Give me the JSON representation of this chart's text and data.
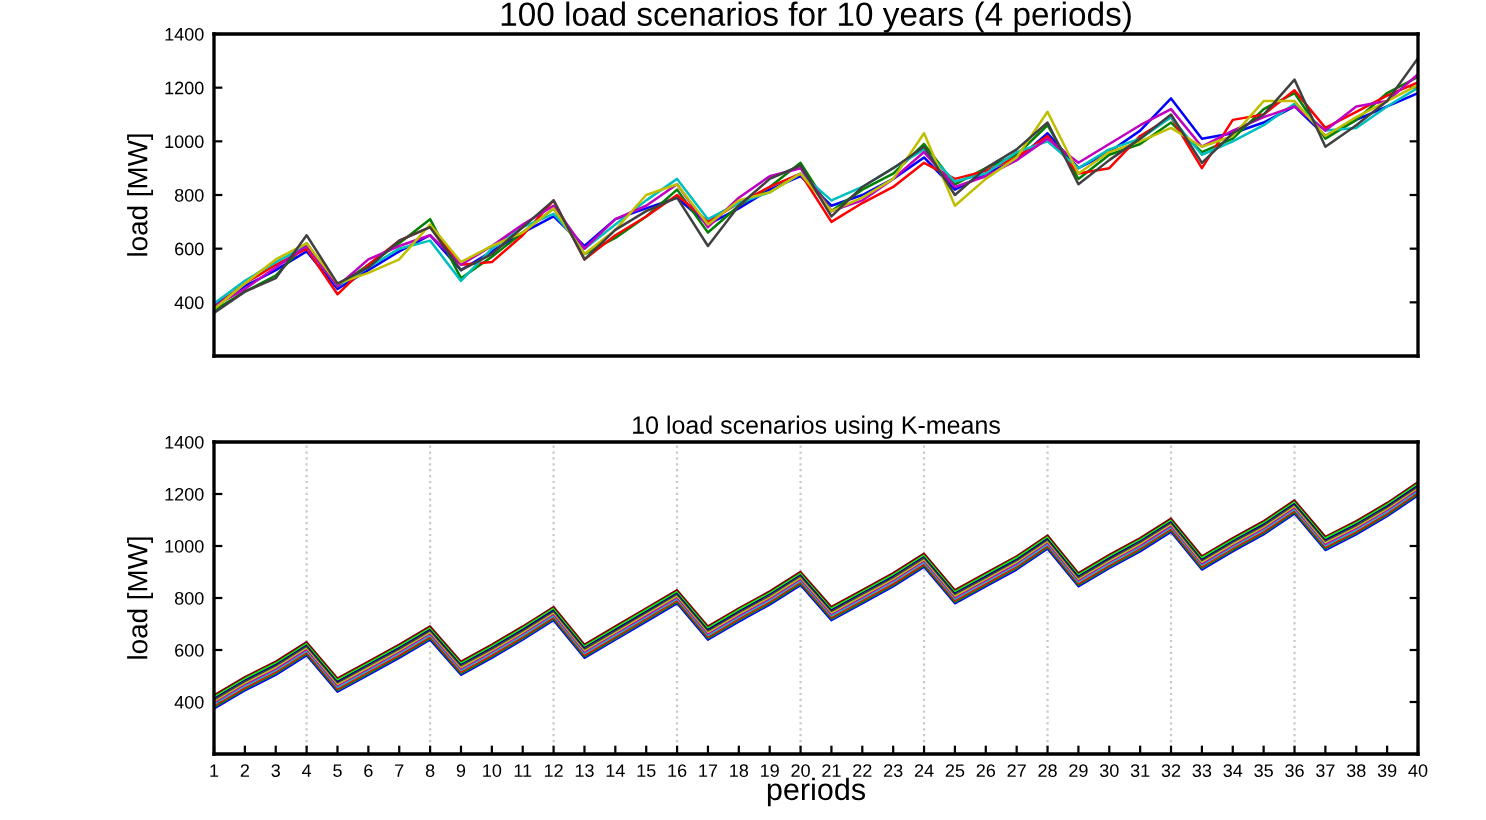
{
  "chart_data": [
    {
      "type": "line",
      "title": "100 load scenarios for 10 years (4 periods)",
      "ylabel": "load [MW]",
      "x": [
        1,
        2,
        3,
        4,
        5,
        6,
        7,
        8,
        9,
        10,
        11,
        12,
        13,
        14,
        15,
        16,
        17,
        18,
        19,
        20,
        21,
        22,
        23,
        24,
        25,
        26,
        27,
        28,
        29,
        30,
        31,
        32,
        33,
        34,
        35,
        36,
        37,
        38,
        39,
        40
      ],
      "xlim": [
        1,
        40
      ],
      "ylim": [
        200,
        1400
      ],
      "yticks": [
        400,
        600,
        800,
        1000,
        1200,
        1400
      ],
      "tick_labels": "y",
      "legend": false,
      "marker": "none",
      "line_style": "solid",
      "grid": false,
      "series": [
        {
          "color": "#0000ff",
          "values": [
            390,
            460,
            520,
            590,
            450,
            520,
            590,
            650,
            520,
            590,
            660,
            720,
            610,
            710,
            750,
            790,
            690,
            750,
            820,
            870,
            760,
            800,
            860,
            940,
            820,
            880,
            930,
            1030,
            900,
            960,
            1040,
            1160,
            1010,
            1030,
            1070,
            1130,
            1020,
            1080,
            1130,
            1180
          ]
        },
        {
          "color": "#008000",
          "values": [
            370,
            440,
            500,
            620,
            460,
            540,
            620,
            710,
            490,
            570,
            660,
            750,
            580,
            640,
            720,
            820,
            660,
            760,
            830,
            920,
            740,
            820,
            880,
            990,
            840,
            900,
            950,
            1060,
            860,
            950,
            990,
            1070,
            960,
            1010,
            1120,
            1180,
            1010,
            1080,
            1180,
            1240
          ]
        },
        {
          "color": "#ff0000",
          "values": [
            380,
            470,
            540,
            600,
            430,
            540,
            630,
            680,
            540,
            550,
            650,
            780,
            560,
            650,
            720,
            800,
            700,
            770,
            830,
            880,
            700,
            770,
            830,
            920,
            860,
            890,
            940,
            1020,
            880,
            900,
            1020,
            1090,
            900,
            1080,
            1100,
            1190,
            1050,
            1110,
            1170,
            1220
          ]
        },
        {
          "color": "#00bfbf",
          "values": [
            395,
            480,
            550,
            610,
            460,
            530,
            600,
            630,
            480,
            600,
            680,
            730,
            600,
            690,
            780,
            860,
            710,
            770,
            810,
            880,
            780,
            830,
            900,
            970,
            850,
            880,
            960,
            1000,
            900,
            970,
            1010,
            1090,
            950,
            1000,
            1060,
            1140,
            1040,
            1050,
            1130,
            1200
          ]
        },
        {
          "color": "#bf00bf",
          "values": [
            385,
            450,
            530,
            610,
            460,
            560,
            610,
            650,
            540,
            610,
            690,
            760,
            600,
            710,
            760,
            840,
            680,
            790,
            870,
            900,
            740,
            780,
            860,
            960,
            830,
            870,
            930,
            1010,
            920,
            990,
            1060,
            1120,
            980,
            1040,
            1090,
            1130,
            1040,
            1130,
            1150,
            1250
          ]
        },
        {
          "color": "#bfbf00",
          "values": [
            375,
            470,
            560,
            620,
            470,
            510,
            560,
            690,
            550,
            610,
            660,
            750,
            580,
            670,
            800,
            840,
            690,
            780,
            810,
            880,
            740,
            790,
            860,
            1030,
            760,
            860,
            940,
            1110,
            880,
            960,
            1000,
            1050,
            980,
            1020,
            1150,
            1150,
            1020,
            1090,
            1150,
            1210
          ]
        },
        {
          "color": "#404040",
          "values": [
            360,
            440,
            490,
            650,
            470,
            530,
            630,
            680,
            520,
            580,
            680,
            780,
            560,
            670,
            740,
            790,
            610,
            760,
            860,
            910,
            720,
            830,
            900,
            980,
            800,
            900,
            970,
            1070,
            840,
            930,
            1010,
            1100,
            920,
            1030,
            1100,
            1230,
            980,
            1060,
            1150,
            1310
          ]
        }
      ]
    },
    {
      "type": "line",
      "title": "10 load scenarios using K-means",
      "ylabel": "load [MW]",
      "xlabel": "periods",
      "x": [
        1,
        2,
        3,
        4,
        5,
        6,
        7,
        8,
        9,
        10,
        11,
        12,
        13,
        14,
        15,
        16,
        17,
        18,
        19,
        20,
        21,
        22,
        23,
        24,
        25,
        26,
        27,
        28,
        29,
        30,
        31,
        32,
        33,
        34,
        35,
        36,
        37,
        38,
        39,
        40
      ],
      "xlim": [
        1,
        40
      ],
      "xticks": [
        1,
        2,
        3,
        4,
        5,
        6,
        7,
        8,
        9,
        10,
        11,
        12,
        13,
        14,
        15,
        16,
        17,
        18,
        19,
        20,
        21,
        22,
        23,
        24,
        25,
        26,
        27,
        28,
        29,
        30,
        31,
        32,
        33,
        34,
        35,
        36,
        37,
        38,
        39,
        40
      ],
      "ylim": [
        200,
        1400
      ],
      "yticks": [
        400,
        600,
        800,
        1000,
        1200,
        1400
      ],
      "legend": false,
      "marker": "none",
      "line_style": "solid",
      "grid": false,
      "ref_lines": [
        {
          "axis": "x",
          "value": 4,
          "color": "#c8c8c8",
          "line_style": "dotted"
        },
        {
          "axis": "x",
          "value": 8,
          "color": "#c8c8c8",
          "line_style": "dotted"
        },
        {
          "axis": "x",
          "value": 12,
          "color": "#c8c8c8",
          "line_style": "dotted"
        },
        {
          "axis": "x",
          "value": 16,
          "color": "#c8c8c8",
          "line_style": "dotted"
        },
        {
          "axis": "x",
          "value": 20,
          "color": "#c8c8c8",
          "line_style": "dotted"
        },
        {
          "axis": "x",
          "value": 24,
          "color": "#c8c8c8",
          "line_style": "dotted"
        },
        {
          "axis": "x",
          "value": 28,
          "color": "#c8c8c8",
          "line_style": "dotted"
        },
        {
          "axis": "x",
          "value": 32,
          "color": "#c8c8c8",
          "line_style": "dotted"
        },
        {
          "axis": "x",
          "value": 36,
          "color": "#c8c8c8",
          "line_style": "dotted"
        }
      ],
      "series": [
        {
          "color": "#0000ff",
          "values": [
            373,
            443,
            503,
            578,
            438,
            503,
            568,
            638,
            503,
            568,
            638,
            713,
            568,
            638,
            708,
            778,
            638,
            708,
            773,
            848,
            713,
            778,
            843,
            918,
            778,
            843,
            908,
            988,
            843,
            913,
            978,
            1053,
            908,
            978,
            1043,
            1123,
            983,
            1043,
            1113,
            1193
          ]
        },
        {
          "color": "#008000",
          "values": [
            379,
            449,
            509,
            584,
            444,
            509,
            574,
            644,
            509,
            574,
            644,
            719,
            574,
            644,
            714,
            784,
            644,
            714,
            779,
            854,
            719,
            784,
            849,
            924,
            784,
            849,
            914,
            994,
            849,
            919,
            984,
            1059,
            914,
            984,
            1049,
            1129,
            989,
            1049,
            1119,
            1199
          ]
        },
        {
          "color": "#ff0000",
          "values": [
            385,
            455,
            515,
            590,
            450,
            515,
            580,
            650,
            515,
            580,
            650,
            725,
            580,
            650,
            720,
            790,
            650,
            720,
            785,
            860,
            725,
            790,
            855,
            930,
            790,
            855,
            920,
            1000,
            855,
            925,
            990,
            1065,
            920,
            990,
            1055,
            1135,
            995,
            1055,
            1125,
            1205
          ]
        },
        {
          "color": "#00bfbf",
          "values": [
            391,
            461,
            521,
            596,
            456,
            521,
            586,
            656,
            521,
            586,
            656,
            731,
            586,
            656,
            726,
            796,
            656,
            726,
            791,
            866,
            731,
            796,
            861,
            936,
            796,
            861,
            926,
            1006,
            861,
            931,
            996,
            1071,
            926,
            996,
            1061,
            1141,
            1001,
            1061,
            1131,
            1211
          ]
        },
        {
          "color": "#bf00bf",
          "values": [
            397,
            467,
            527,
            602,
            462,
            527,
            592,
            662,
            527,
            592,
            662,
            737,
            592,
            662,
            732,
            802,
            662,
            732,
            797,
            872,
            737,
            802,
            867,
            942,
            802,
            867,
            932,
            1012,
            867,
            937,
            1002,
            1077,
            932,
            1002,
            1067,
            1147,
            1007,
            1067,
            1137,
            1217
          ]
        },
        {
          "color": "#bfbf00",
          "values": [
            403,
            473,
            533,
            608,
            468,
            533,
            598,
            668,
            533,
            598,
            668,
            743,
            598,
            668,
            738,
            808,
            668,
            738,
            803,
            878,
            743,
            808,
            873,
            948,
            808,
            873,
            938,
            1018,
            873,
            943,
            1008,
            1083,
            938,
            1008,
            1073,
            1153,
            1013,
            1073,
            1143,
            1223
          ]
        },
        {
          "color": "#404040",
          "values": [
            409,
            479,
            539,
            614,
            474,
            539,
            604,
            674,
            539,
            604,
            674,
            749,
            604,
            674,
            744,
            814,
            674,
            744,
            809,
            884,
            749,
            814,
            879,
            954,
            814,
            879,
            944,
            1024,
            879,
            949,
            1014,
            1089,
            944,
            1014,
            1079,
            1159,
            1019,
            1079,
            1149,
            1229
          ]
        },
        {
          "color": "#000080",
          "values": [
            415,
            485,
            545,
            620,
            480,
            545,
            610,
            680,
            545,
            610,
            680,
            755,
            610,
            680,
            750,
            820,
            680,
            750,
            815,
            890,
            755,
            820,
            885,
            960,
            820,
            885,
            950,
            1030,
            885,
            955,
            1020,
            1095,
            950,
            1020,
            1085,
            1165,
            1025,
            1085,
            1155,
            1235
          ]
        },
        {
          "color": "#00ff00",
          "values": [
            421,
            491,
            551,
            626,
            486,
            551,
            616,
            686,
            551,
            616,
            686,
            761,
            616,
            686,
            756,
            826,
            686,
            756,
            821,
            896,
            761,
            826,
            891,
            966,
            826,
            891,
            956,
            1036,
            891,
            961,
            1026,
            1101,
            956,
            1026,
            1091,
            1171,
            1031,
            1091,
            1161,
            1241
          ]
        },
        {
          "color": "#800000",
          "values": [
            427,
            497,
            557,
            632,
            492,
            557,
            622,
            692,
            557,
            622,
            692,
            767,
            622,
            692,
            762,
            832,
            692,
            762,
            827,
            902,
            767,
            832,
            897,
            972,
            832,
            897,
            962,
            1042,
            897,
            967,
            1032,
            1107,
            962,
            1032,
            1097,
            1177,
            1037,
            1097,
            1167,
            1247
          ]
        }
      ]
    }
  ]
}
